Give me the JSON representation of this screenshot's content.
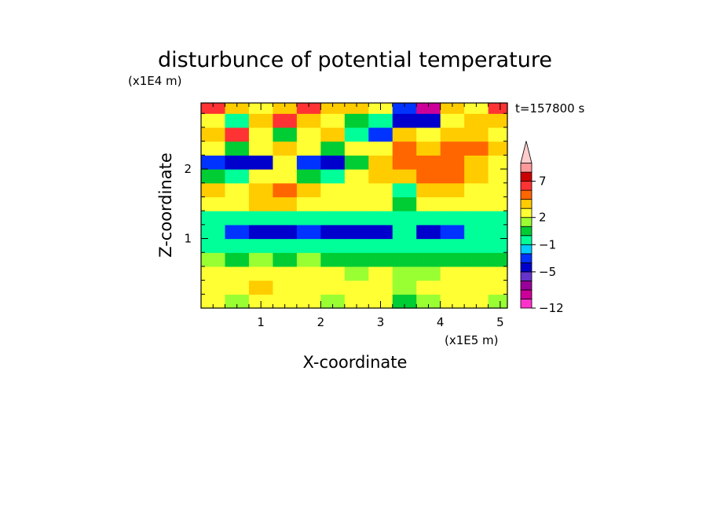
{
  "chart_data": {
    "type": "heatmap",
    "title": "disturbunce of potential temperature",
    "xlabel": "X-coordinate",
    "ylabel": "Z-coordinate",
    "x_scale_label": "(x1E5 m)",
    "y_scale_label": "(x1E4 m)",
    "time_label": "t=157800 s",
    "xlim": [
      0,
      5.12
    ],
    "ylim": [
      0,
      2.95
    ],
    "x_ticks": [
      1,
      2,
      3,
      4,
      5
    ],
    "x_tick_labels": [
      "1",
      "2",
      "3",
      "4",
      "5"
    ],
    "y_ticks": [
      1,
      2
    ],
    "y_tick_labels": [
      "1",
      "2"
    ],
    "colorbar": {
      "levels": [
        -12,
        -10,
        -8,
        -6,
        -5,
        -4,
        -3,
        -1,
        0,
        1,
        2,
        3,
        5,
        6,
        7,
        8,
        10
      ],
      "colors": [
        "#ff33cc",
        "#cc0099",
        "#990099",
        "#6633cc",
        "#0000cc",
        "#0033ff",
        "#00ccff",
        "#00ff99",
        "#00cc33",
        "#99ff33",
        "#ffff33",
        "#ffcc00",
        "#ff6600",
        "#ff3333",
        "#cc0000",
        "#ff9999",
        "#ffcccc"
      ],
      "tick_values": [
        -12,
        -5,
        -1,
        2,
        7
      ],
      "tick_labels": [
        "−12",
        "−5",
        "−1",
        "2",
        "7"
      ],
      "extend": "max"
    },
    "rows_z": [
      0.1,
      0.3,
      0.5,
      0.7,
      0.9,
      1.1,
      1.3,
      1.5,
      1.7,
      1.9,
      2.1,
      2.3,
      2.5,
      2.7,
      2.9
    ],
    "cols_x": [
      0.2,
      0.6,
      1.0,
      1.4,
      1.8,
      2.2,
      2.6,
      3.0,
      3.4,
      3.8,
      4.2,
      4.6,
      5.0
    ],
    "values": [
      [
        2,
        1,
        2,
        2,
        2,
        1,
        2,
        2,
        0,
        1,
        2,
        2,
        1
      ],
      [
        2,
        2,
        3,
        2,
        2,
        2,
        2,
        2,
        1,
        2,
        2,
        2,
        2
      ],
      [
        2,
        2,
        2,
        2,
        2,
        2,
        1,
        2,
        1,
        1,
        2,
        2,
        2
      ],
      [
        1,
        0,
        1,
        0,
        1,
        0,
        0,
        0,
        0,
        0,
        0,
        0,
        0
      ],
      [
        -1,
        -1,
        -1,
        -1,
        -1,
        -1,
        -1,
        -1,
        -1,
        -1,
        -1,
        -1,
        -1
      ],
      [
        -1,
        -4,
        -5,
        -5,
        -4,
        -5,
        -5,
        -5,
        -1,
        -5,
        -4,
        -1,
        -1
      ],
      [
        -1,
        -1,
        -1,
        -1,
        -1,
        -1,
        -1,
        -1,
        -1,
        -1,
        -1,
        -1,
        -1
      ],
      [
        2,
        2,
        3,
        3,
        2,
        2,
        2,
        2,
        0,
        2,
        2,
        2,
        2
      ],
      [
        3,
        2,
        3,
        5,
        3,
        2,
        2,
        2,
        -1,
        3,
        3,
        2,
        2
      ],
      [
        0,
        -1,
        2,
        2,
        0,
        -1,
        2,
        3,
        3,
        5,
        5,
        3,
        2
      ],
      [
        -4,
        -5,
        -5,
        2,
        -4,
        -5,
        0,
        3,
        5,
        5,
        5,
        3,
        2
      ],
      [
        2,
        0,
        2,
        3,
        2,
        0,
        2,
        2,
        5,
        3,
        5,
        5,
        3
      ],
      [
        3,
        6,
        2,
        0,
        2,
        3,
        -1,
        -4,
        3,
        2,
        3,
        3,
        2
      ],
      [
        2,
        -1,
        3,
        6,
        3,
        2,
        0,
        -1,
        -5,
        -5,
        2,
        3,
        3
      ],
      [
        6,
        3,
        2,
        3,
        6,
        3,
        3,
        2,
        -4,
        -10,
        3,
        2,
        6
      ]
    ]
  }
}
